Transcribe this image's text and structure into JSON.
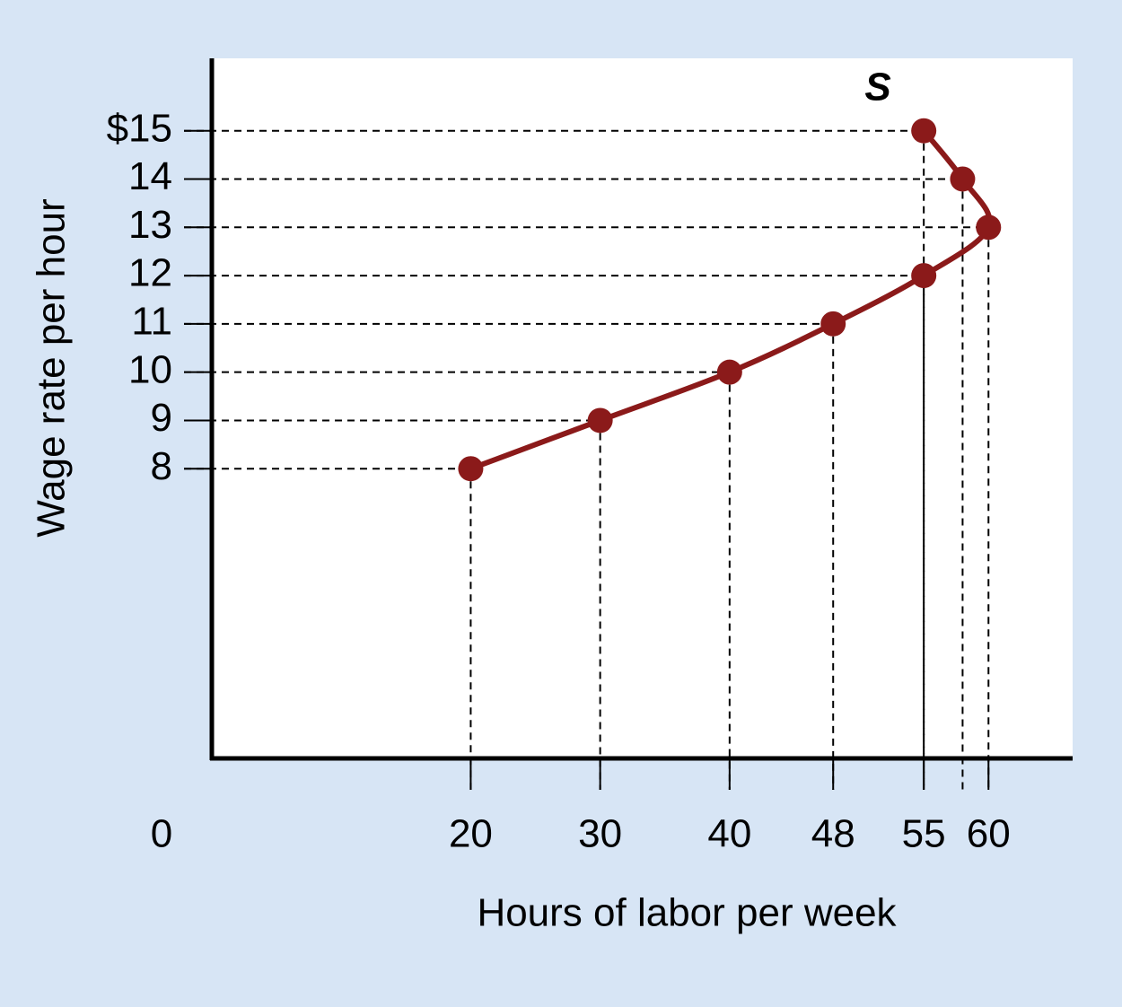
{
  "chart_data": {
    "type": "line",
    "curve_label": "S",
    "x_label": "Hours of labor per week",
    "y_label": "Wage rate per hour",
    "x": [
      20,
      30,
      40,
      48,
      55,
      60,
      58,
      55
    ],
    "series": [
      {
        "color": "#8b1a1a",
        "values": [
          8,
          9,
          10,
          11,
          12,
          13,
          14,
          15
        ]
      }
    ],
    "xlim": [
      0,
      66.5
    ],
    "ylim": [
      2,
      16.5
    ],
    "xticks": [
      0,
      20,
      30,
      40,
      48,
      55,
      60
    ],
    "yticks": [
      8,
      9,
      10,
      11,
      12,
      13,
      14,
      {
        "value": 15,
        "label": "$15"
      }
    ],
    "guide_lines": true
  }
}
